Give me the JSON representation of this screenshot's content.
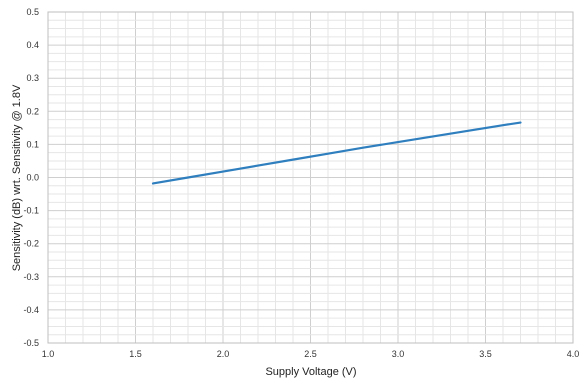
{
  "chart_data": {
    "type": "line",
    "xlabel": "Supply Voltage (V)",
    "ylabel": "Sensitivity (dB) wrt. Sensitivity @ 1.8V",
    "xlim": [
      1.0,
      4.0
    ],
    "ylim": [
      -0.5,
      0.5
    ],
    "xticks": [
      "1.0",
      "1.5",
      "2.0",
      "2.5",
      "3.0",
      "3.5",
      "4.0"
    ],
    "yticks": [
      "0.5",
      "0.4",
      "0.3",
      "0.2",
      "0.1",
      "0.0",
      "-0.1",
      "-0.2",
      "-0.3",
      "-0.4",
      "-0.5"
    ],
    "grid": true,
    "series": [
      {
        "x": [
          1.6,
          1.8,
          2.0,
          2.2,
          2.4,
          2.6,
          2.8,
          3.0,
          3.2,
          3.4,
          3.6,
          3.7
        ],
        "y": [
          -0.018,
          0.0,
          0.018,
          0.036,
          0.054,
          0.072,
          0.09,
          0.107,
          0.124,
          0.141,
          0.158,
          0.166
        ],
        "color": "#2f7fbf"
      }
    ]
  }
}
